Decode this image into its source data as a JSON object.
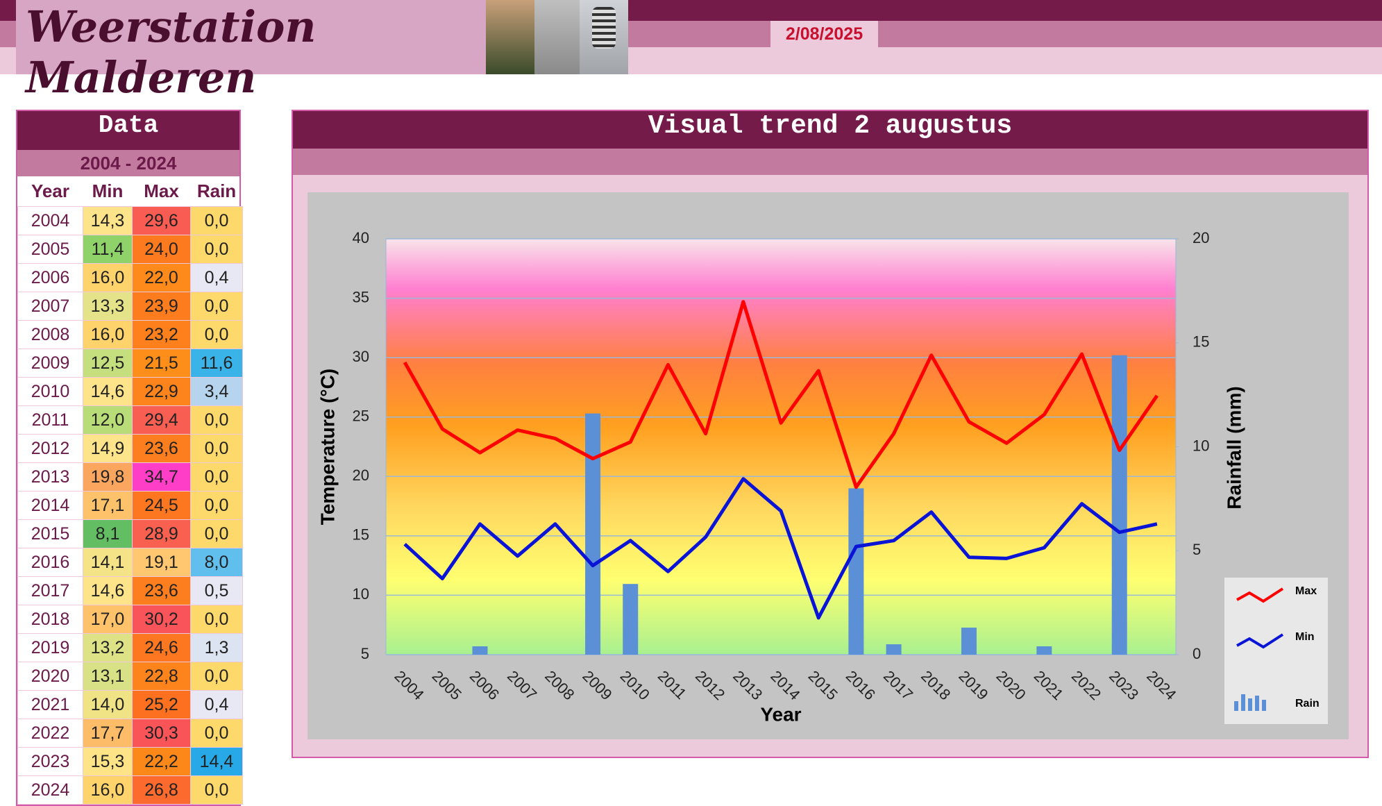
{
  "header": {
    "title": "Weerstation Malderen",
    "date": "2/08/2025"
  },
  "table": {
    "title": "Data",
    "period": "2004 - 2024",
    "columns": [
      "Year",
      "Min",
      "Max",
      "Rain"
    ],
    "rows": [
      [
        "2004",
        "14,3",
        "29,6",
        "0,0"
      ],
      [
        "2005",
        "11,4",
        "24,0",
        "0,0"
      ],
      [
        "2006",
        "16,0",
        "22,0",
        "0,4"
      ],
      [
        "2007",
        "13,3",
        "23,9",
        "0,0"
      ],
      [
        "2008",
        "16,0",
        "23,2",
        "0,0"
      ],
      [
        "2009",
        "12,5",
        "21,5",
        "11,6"
      ],
      [
        "2010",
        "14,6",
        "22,9",
        "3,4"
      ],
      [
        "2011",
        "12,0",
        "29,4",
        "0,0"
      ],
      [
        "2012",
        "14,9",
        "23,6",
        "0,0"
      ],
      [
        "2013",
        "19,8",
        "34,7",
        "0,0"
      ],
      [
        "2014",
        "17,1",
        "24,5",
        "0,0"
      ],
      [
        "2015",
        "8,1",
        "28,9",
        "0,0"
      ],
      [
        "2016",
        "14,1",
        "19,1",
        "8,0"
      ],
      [
        "2017",
        "14,6",
        "23,6",
        "0,5"
      ],
      [
        "2018",
        "17,0",
        "30,2",
        "0,0"
      ],
      [
        "2019",
        "13,2",
        "24,6",
        "1,3"
      ],
      [
        "2020",
        "13,1",
        "22,8",
        "0,0"
      ],
      [
        "2021",
        "14,0",
        "25,2",
        "0,4"
      ],
      [
        "2022",
        "17,7",
        "30,3",
        "0,0"
      ],
      [
        "2023",
        "15,3",
        "22,2",
        "14,4"
      ],
      [
        "2024",
        "16,0",
        "26,8",
        "0,0"
      ]
    ],
    "cell_colors": [
      [
        "#fde38a",
        "#f95c52",
        "#fdd86b"
      ],
      [
        "#8fd26a",
        "#fd7a1e",
        "#fdd86b"
      ],
      [
        "#ffd36b",
        "#fd8a1a",
        "#e8e8f4"
      ],
      [
        "#e4e38a",
        "#fd7c1e",
        "#fdd86b"
      ],
      [
        "#ffd36b",
        "#fd801c",
        "#fdd86b"
      ],
      [
        "#c5df7e",
        "#fd8e1a",
        "#3ab3e8"
      ],
      [
        "#fde38a",
        "#fd841c",
        "#b6d4ee"
      ],
      [
        "#b8dc78",
        "#f95e52",
        "#fdd86b"
      ],
      [
        "#fde38a",
        "#fd7e1e",
        "#fdd86b"
      ],
      [
        "#fba65e",
        "#ff3ec8",
        "#fdd86b"
      ],
      [
        "#fec36a",
        "#fd7620",
        "#fdd86b"
      ],
      [
        "#63be63",
        "#f96050",
        "#fdd86b"
      ],
      [
        "#f4e487",
        "#ffc870",
        "#61bfee"
      ],
      [
        "#fde38a",
        "#fd7e1e",
        "#e8e8f4"
      ],
      [
        "#fec36a",
        "#f9545a",
        "#fdd86b"
      ],
      [
        "#dde286",
        "#fd7620",
        "#dbe4f0"
      ],
      [
        "#d8e185",
        "#fd841c",
        "#fdd86b"
      ],
      [
        "#efe386",
        "#fd7020",
        "#e8e8f4"
      ],
      [
        "#fdbd68",
        "#f95458",
        "#fdd86b"
      ],
      [
        "#ffe487",
        "#fd881a",
        "#26a9e6"
      ],
      [
        "#ffd36b",
        "#fd6a2e",
        "#fdd86b"
      ]
    ]
  },
  "chart_data": {
    "type": "line",
    "title": "Visual trend 2 augustus",
    "x_label": "Year",
    "y_label": "Temperature (°C)",
    "y2_label": "Rainfall (mm)",
    "categories": [
      "2004",
      "2005",
      "2006",
      "2007",
      "2008",
      "2009",
      "2010",
      "2011",
      "2012",
      "2013",
      "2014",
      "2015",
      "2016",
      "2017",
      "2018",
      "2019",
      "2020",
      "2021",
      "2022",
      "2023",
      "2024"
    ],
    "ylim": [
      5,
      40
    ],
    "yticks": [
      5,
      10,
      15,
      20,
      25,
      30,
      35,
      40
    ],
    "y2lim": [
      0,
      20
    ],
    "y2ticks": [
      0,
      5,
      10,
      15,
      20
    ],
    "grid": true,
    "legend": "right",
    "series": [
      {
        "name": "Max",
        "color": "#ff0000",
        "values": [
          29.6,
          24.0,
          22.0,
          23.9,
          23.2,
          21.5,
          22.9,
          29.4,
          23.6,
          34.7,
          24.5,
          28.9,
          19.1,
          23.6,
          30.2,
          24.6,
          22.8,
          25.2,
          30.3,
          22.2,
          26.8
        ]
      },
      {
        "name": "Min",
        "color": "#0a14d6",
        "values": [
          14.3,
          11.4,
          16.0,
          13.3,
          16.0,
          12.5,
          14.6,
          12.0,
          14.9,
          19.8,
          17.1,
          8.1,
          14.1,
          14.6,
          17.0,
          13.2,
          13.1,
          14.0,
          17.7,
          15.3,
          16.0
        ]
      },
      {
        "name": "Rain",
        "type": "bar",
        "axis": "y2",
        "color": "#5b8fd6",
        "values": [
          0.0,
          0.0,
          0.4,
          0.0,
          0.0,
          11.6,
          3.4,
          0.0,
          0.0,
          0.0,
          0.0,
          0.0,
          8.0,
          0.5,
          0.0,
          1.3,
          0.0,
          0.4,
          0.0,
          14.4,
          0.0
        ]
      }
    ]
  }
}
